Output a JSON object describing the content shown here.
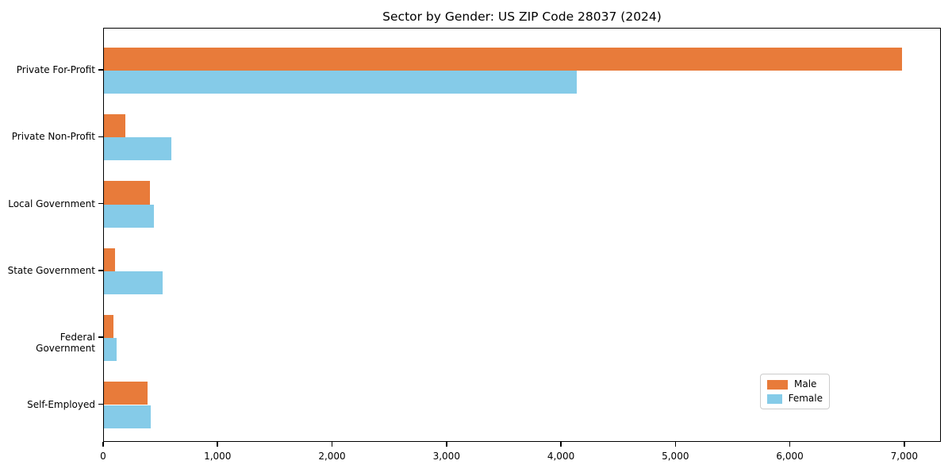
{
  "chart_data": {
    "type": "bar",
    "orientation": "horizontal",
    "title": "Sector by Gender: US ZIP Code 28037 (2024)",
    "categories": [
      "Private For-Profit",
      "Private Non-Profit",
      "Local Government",
      "State Government",
      "Federal Government",
      "Self-Employed"
    ],
    "series": [
      {
        "name": "Male",
        "color": "#e87b3a",
        "values": [
          6970,
          185,
          400,
          100,
          80,
          380
        ]
      },
      {
        "name": "Female",
        "color": "#85cbe8",
        "values": [
          4130,
          590,
          440,
          510,
          110,
          410
        ]
      }
    ],
    "xlabel": "",
    "ylabel": "",
    "xlim": [
      0,
      7320
    ],
    "xticks": [
      0,
      1000,
      2000,
      3000,
      4000,
      5000,
      6000,
      7000
    ],
    "xtick_labels": [
      "0",
      "1,000",
      "2,000",
      "3,000",
      "4,000",
      "5,000",
      "6,000",
      "7,000"
    ],
    "legend": {
      "position": "lower-right",
      "entries": [
        "Male",
        "Female"
      ]
    },
    "grid": false
  }
}
